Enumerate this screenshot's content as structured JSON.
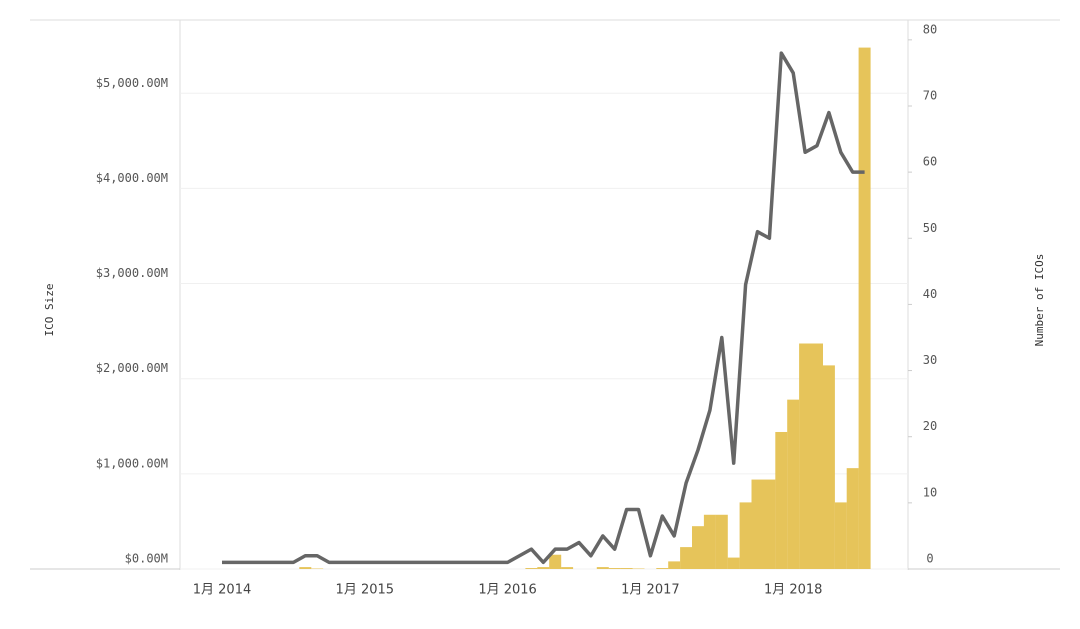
{
  "chart_data": {
    "type": "bar-line",
    "y_label": "ICO Size",
    "y2_label": "Number of ICOs",
    "categories": [
      "1月 2014",
      null,
      null,
      null,
      null,
      null,
      null,
      null,
      null,
      null,
      null,
      null,
      "1月 2015",
      null,
      null,
      null,
      null,
      null,
      null,
      null,
      null,
      null,
      null,
      null,
      "1月 2016",
      null,
      null,
      null,
      null,
      null,
      null,
      null,
      null,
      null,
      null,
      null,
      "1月 2017",
      null,
      null,
      null,
      null,
      null,
      null,
      null,
      null,
      null,
      null,
      null,
      "1月 2018",
      null,
      null,
      null,
      null,
      null,
      null
    ],
    "series": [
      {
        "name": "ICO Size",
        "type": "bar",
        "color": "#e6c45a",
        "values": [
          0,
          0,
          0,
          0,
          0,
          0,
          0,
          20,
          5,
          0,
          0,
          0,
          0,
          0,
          0,
          0,
          0,
          0,
          0,
          0,
          0,
          0,
          0,
          0,
          0,
          0,
          10,
          20,
          150,
          20,
          0,
          0,
          20,
          10,
          10,
          5,
          0,
          10,
          80,
          230,
          450,
          570,
          570,
          120,
          700,
          940,
          940,
          1440,
          1780,
          2370,
          2370,
          2140,
          700,
          1060,
          5480
        ]
      },
      {
        "name": "Number of ICOs",
        "type": "line",
        "axis": "y2",
        "color": "#666666",
        "values": [
          1,
          1,
          1,
          1,
          1,
          1,
          1,
          2,
          2,
          1,
          1,
          1,
          1,
          1,
          1,
          1,
          1,
          1,
          1,
          1,
          1,
          1,
          1,
          1,
          1,
          2,
          3,
          1,
          3,
          3,
          4,
          2,
          5,
          3,
          9,
          9,
          2,
          8,
          5,
          13,
          18,
          24,
          35,
          16,
          43,
          51,
          50,
          78,
          75,
          63,
          64,
          69,
          63,
          60,
          60
        ]
      }
    ],
    "ylim": [
      0,
      5770
    ],
    "yticks": [
      {
        "value": 0,
        "label": "$0.00M"
      },
      {
        "value": 1000,
        "label": "$1,000.00M"
      },
      {
        "value": 2000,
        "label": "$2,000.00M"
      },
      {
        "value": 3000,
        "label": "$3,000.00M"
      },
      {
        "value": 4000,
        "label": "$4,000.00M"
      },
      {
        "value": 5000,
        "label": "$5,000.00M"
      }
    ],
    "y2lim": [
      0,
      83
    ],
    "y2ticks": [
      0,
      10,
      20,
      30,
      40,
      50,
      60,
      70,
      80
    ],
    "grid": true
  }
}
